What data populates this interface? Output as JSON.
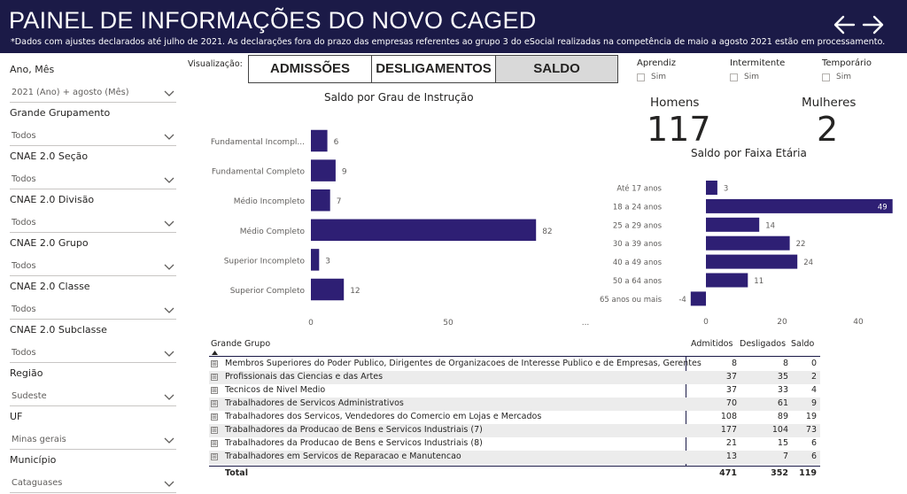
{
  "header": {
    "title": "PAINEL DE INFORMAÇÕES DO NOVO CAGED",
    "subtitle": "*Dados com ajustes declarados até julho de 2021. As declarações fora do prazo das empresas referentes ao grupo 3 do eSocial realizadas na competência de maio a agosto 2021 estão em processamento.",
    "back_icon": "arrow-left-icon",
    "forward_icon": "arrow-right-icon"
  },
  "filters": [
    {
      "label": "Ano, Mês",
      "value": "2021 (Ano) + agosto (Mês)"
    },
    {
      "label": "Grande Grupamento",
      "value": "Todos"
    },
    {
      "label": "CNAE 2.0 Seção",
      "value": "Todos"
    },
    {
      "label": "CNAE 2.0 Divisão",
      "value": "Todos"
    },
    {
      "label": "CNAE 2.0 Grupo",
      "value": "Todos"
    },
    {
      "label": "CNAE 2.0 Classe",
      "value": "Todos"
    },
    {
      "label": "CNAE 2.0 Subclasse",
      "value": "Todos"
    },
    {
      "label": "Região",
      "value": "Sudeste"
    },
    {
      "label": "UF",
      "value": "Minas gerais"
    },
    {
      "label": "Município",
      "value": "Cataguases"
    }
  ],
  "visualization": {
    "label": "Visualização:",
    "buttons": [
      "ADMISSÕES",
      "DESLIGAMENTOS",
      "SALDO"
    ],
    "active": "SALDO"
  },
  "checkbox_filters": [
    {
      "title": "Aprendiz",
      "option": "Sim"
    },
    {
      "title": "Intermitente",
      "option": "Sim"
    },
    {
      "title": "Temporário",
      "option": "Sim"
    }
  ],
  "kpis": {
    "homens_label": "Homens",
    "homens_value": "117",
    "mulheres_label": "Mulheres",
    "mulheres_value": "2"
  },
  "colors": {
    "header_bg": "#1b1a47",
    "bar": "#2e1f74",
    "active_button": "#d9d9d9"
  },
  "chart_data": [
    {
      "type": "bar",
      "orientation": "horizontal",
      "title": "Saldo por Grau de Instrução",
      "categories": [
        "Fundamental Incompl...",
        "Fundamental Completo",
        "Médio Incompleto",
        "Médio Completo",
        "Superior Incompleto",
        "Superior Completo"
      ],
      "values": [
        6,
        9,
        7,
        82,
        3,
        12
      ],
      "xlim": [
        0,
        100
      ],
      "xticks": [
        "0",
        "50",
        "..."
      ]
    },
    {
      "type": "bar",
      "orientation": "horizontal",
      "title": "Saldo por Faixa Etária",
      "categories": [
        "Até 17 anos",
        "18 a 24 anos",
        "25 a 29 anos",
        "30 a 39 anos",
        "40 a 49 anos",
        "50 a 64 anos",
        "65 anos ou mais"
      ],
      "values": [
        3,
        49,
        14,
        22,
        24,
        11,
        -4
      ],
      "xlim": [
        -4,
        49
      ],
      "xticks": [
        "0",
        "20",
        "40"
      ]
    }
  ],
  "table": {
    "headers": {
      "group": "Grande Grupo",
      "admitidos": "Admitidos",
      "desligados": "Desligados",
      "saldo": "Saldo"
    },
    "rows": [
      {
        "name": "Membros Superiores do Poder Publico, Dirigentes de Organizacoes de Interesse Publico e de Empresas, Gerentes",
        "admitidos": "8",
        "desligados": "8",
        "saldo": "0"
      },
      {
        "name": "Profissionais das Ciencias e das Artes",
        "admitidos": "37",
        "desligados": "35",
        "saldo": "2"
      },
      {
        "name": "Tecnicos de Nivel Medio",
        "admitidos": "37",
        "desligados": "33",
        "saldo": "4"
      },
      {
        "name": "Trabalhadores de Servicos Administrativos",
        "admitidos": "70",
        "desligados": "61",
        "saldo": "9"
      },
      {
        "name": "Trabalhadores dos Servicos, Vendedores do Comercio em Lojas e Mercados",
        "admitidos": "108",
        "desligados": "89",
        "saldo": "19"
      },
      {
        "name": "Trabalhadores da Producao de Bens e Servicos Industriais (7)",
        "admitidos": "177",
        "desligados": "104",
        "saldo": "73"
      },
      {
        "name": "Trabalhadores da Producao de Bens e Servicos Industriais (8)",
        "admitidos": "21",
        "desligados": "15",
        "saldo": "6"
      },
      {
        "name": "Trabalhadores em Servicos de Reparacao e Manutencao",
        "admitidos": "13",
        "desligados": "7",
        "saldo": "6"
      }
    ],
    "total": {
      "name": "Total",
      "admitidos": "471",
      "desligados": "352",
      "saldo": "119"
    },
    "expand_symbol": "⊞"
  }
}
